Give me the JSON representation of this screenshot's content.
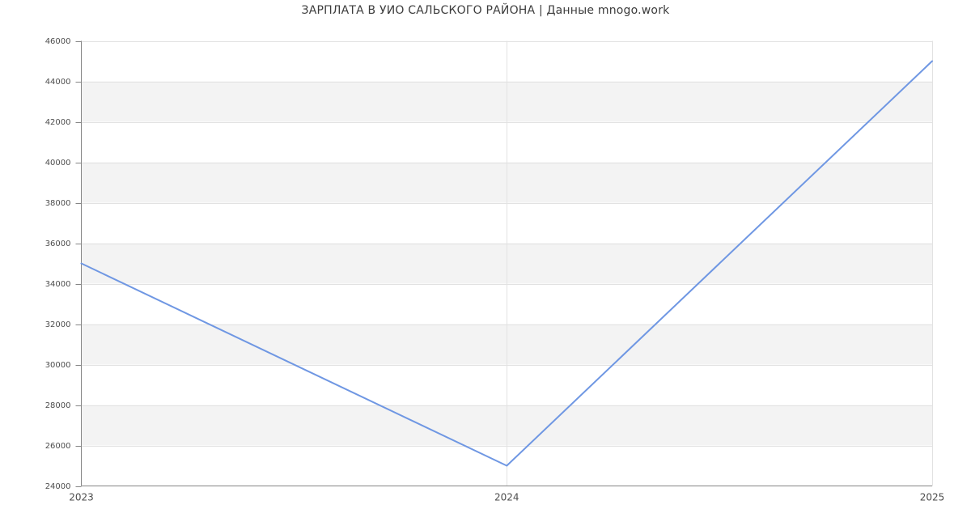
{
  "title": "ЗАРПЛАТА В УИО САЛЬСКОГО РАЙОНА | Данные mnogo.work",
  "chart_data": {
    "type": "line",
    "title": "ЗАРПЛАТА В УИО САЛЬСКОГО РАЙОНА | Данные mnogo.work",
    "categories": [
      "2023",
      "2024",
      "2025"
    ],
    "values": [
      35000,
      25000,
      45000
    ],
    "xlabel": "",
    "ylabel": "",
    "ylim": [
      24000,
      46000
    ],
    "ytick_step": 2000,
    "yticks": [
      46000,
      44000,
      42000,
      40000,
      38000,
      36000,
      34000,
      32000,
      30000,
      28000,
      26000,
      24000
    ],
    "grid": true,
    "legend": "none",
    "colors": {
      "line": "#6f97e3",
      "band": "#f3f3f3",
      "gridline": "#e2e2e2",
      "axis": "#858585",
      "tick_label": "#4d4d4d",
      "title": "#3c3c3c",
      "background": "#ffffff"
    }
  }
}
